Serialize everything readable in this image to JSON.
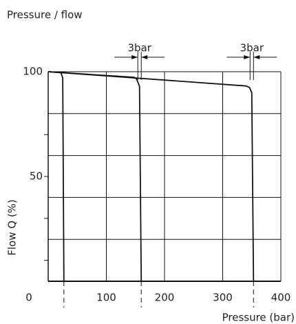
{
  "chart_data": {
    "type": "line",
    "title": "Pressure / flow",
    "x_label": "Pressure (bar)",
    "y_label": "Flow Q (%)",
    "xlim": [
      0,
      400
    ],
    "ylim": [
      0,
      100
    ],
    "xticks": [
      0,
      100,
      200,
      300,
      400
    ],
    "yticks": [
      50,
      100
    ],
    "ygrid": [
      20,
      40,
      60,
      80,
      100
    ],
    "yminor": [
      10,
      30,
      50,
      70
    ],
    "grid": true,
    "series": [
      {
        "color": "#111111",
        "x": [
          0,
          22,
          25,
          27
        ],
        "values": [
          100,
          99.5,
          97,
          0
        ]
      },
      {
        "color": "#111111",
        "x": [
          0,
          148,
          152,
          157,
          160
        ],
        "values": [
          100,
          97.3,
          96.5,
          93,
          0
        ]
      },
      {
        "color": "#111111",
        "x": [
          0,
          340,
          346,
          350,
          353
        ],
        "values": [
          100,
          93.2,
          92.5,
          90,
          0
        ]
      }
    ],
    "annotations": [
      "3bar",
      "3bar"
    ]
  }
}
